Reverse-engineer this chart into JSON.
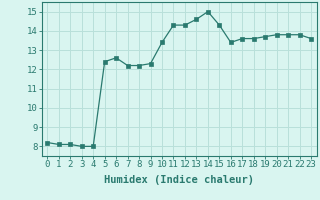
{
  "x": [
    0,
    1,
    2,
    3,
    4,
    5,
    6,
    7,
    8,
    9,
    10,
    11,
    12,
    13,
    14,
    15,
    16,
    17,
    18,
    19,
    20,
    21,
    22,
    23
  ],
  "y": [
    8.2,
    8.1,
    8.1,
    8.0,
    8.0,
    12.4,
    12.6,
    12.2,
    12.2,
    12.3,
    13.4,
    14.3,
    14.3,
    14.6,
    15.0,
    14.3,
    13.4,
    13.6,
    13.6,
    13.7,
    13.8,
    13.8,
    13.8,
    13.6
  ],
  "xlabel": "Humidex (Indice chaleur)",
  "ylim": [
    7.5,
    15.5
  ],
  "xlim": [
    -0.5,
    23.5
  ],
  "yticks": [
    8,
    9,
    10,
    11,
    12,
    13,
    14,
    15
  ],
  "xtick_labels": [
    "0",
    "1",
    "2",
    "3",
    "4",
    "5",
    "6",
    "7",
    "8",
    "9",
    "10",
    "11",
    "12",
    "13",
    "14",
    "15",
    "16",
    "17",
    "18",
    "19",
    "20",
    "21",
    "22",
    "23"
  ],
  "line_color": "#2a7a6f",
  "marker_color": "#2a7a6f",
  "bg_color": "#d9f5f0",
  "grid_color": "#b8e0da",
  "tick_label_fontsize": 6.5,
  "xlabel_fontsize": 7.5
}
